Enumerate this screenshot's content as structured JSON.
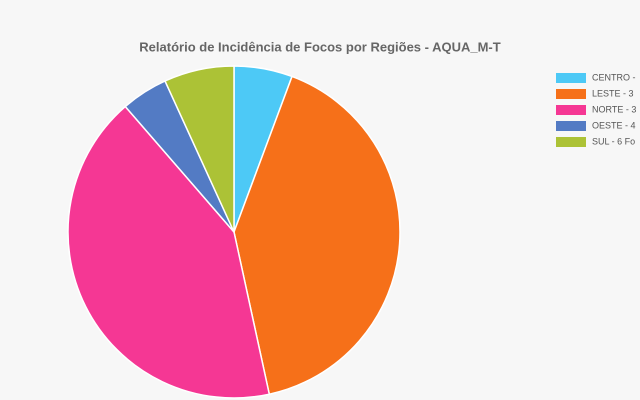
{
  "chart_data": {
    "type": "pie",
    "title": "Relatório de Incidência de Focos por Regiões - AQUA_M-T",
    "categories": [
      "CENTRO -",
      "LESTE -  3",
      "NORTE -  3",
      "OESTE -  4",
      "SUL -  6 Fo"
    ],
    "values": [
      5,
      36,
      37,
      4,
      6
    ],
    "colors": [
      "#4dc9f6",
      "#f67019",
      "#f53794",
      "#537bc4",
      "#acc236"
    ],
    "legend": "top-right"
  }
}
